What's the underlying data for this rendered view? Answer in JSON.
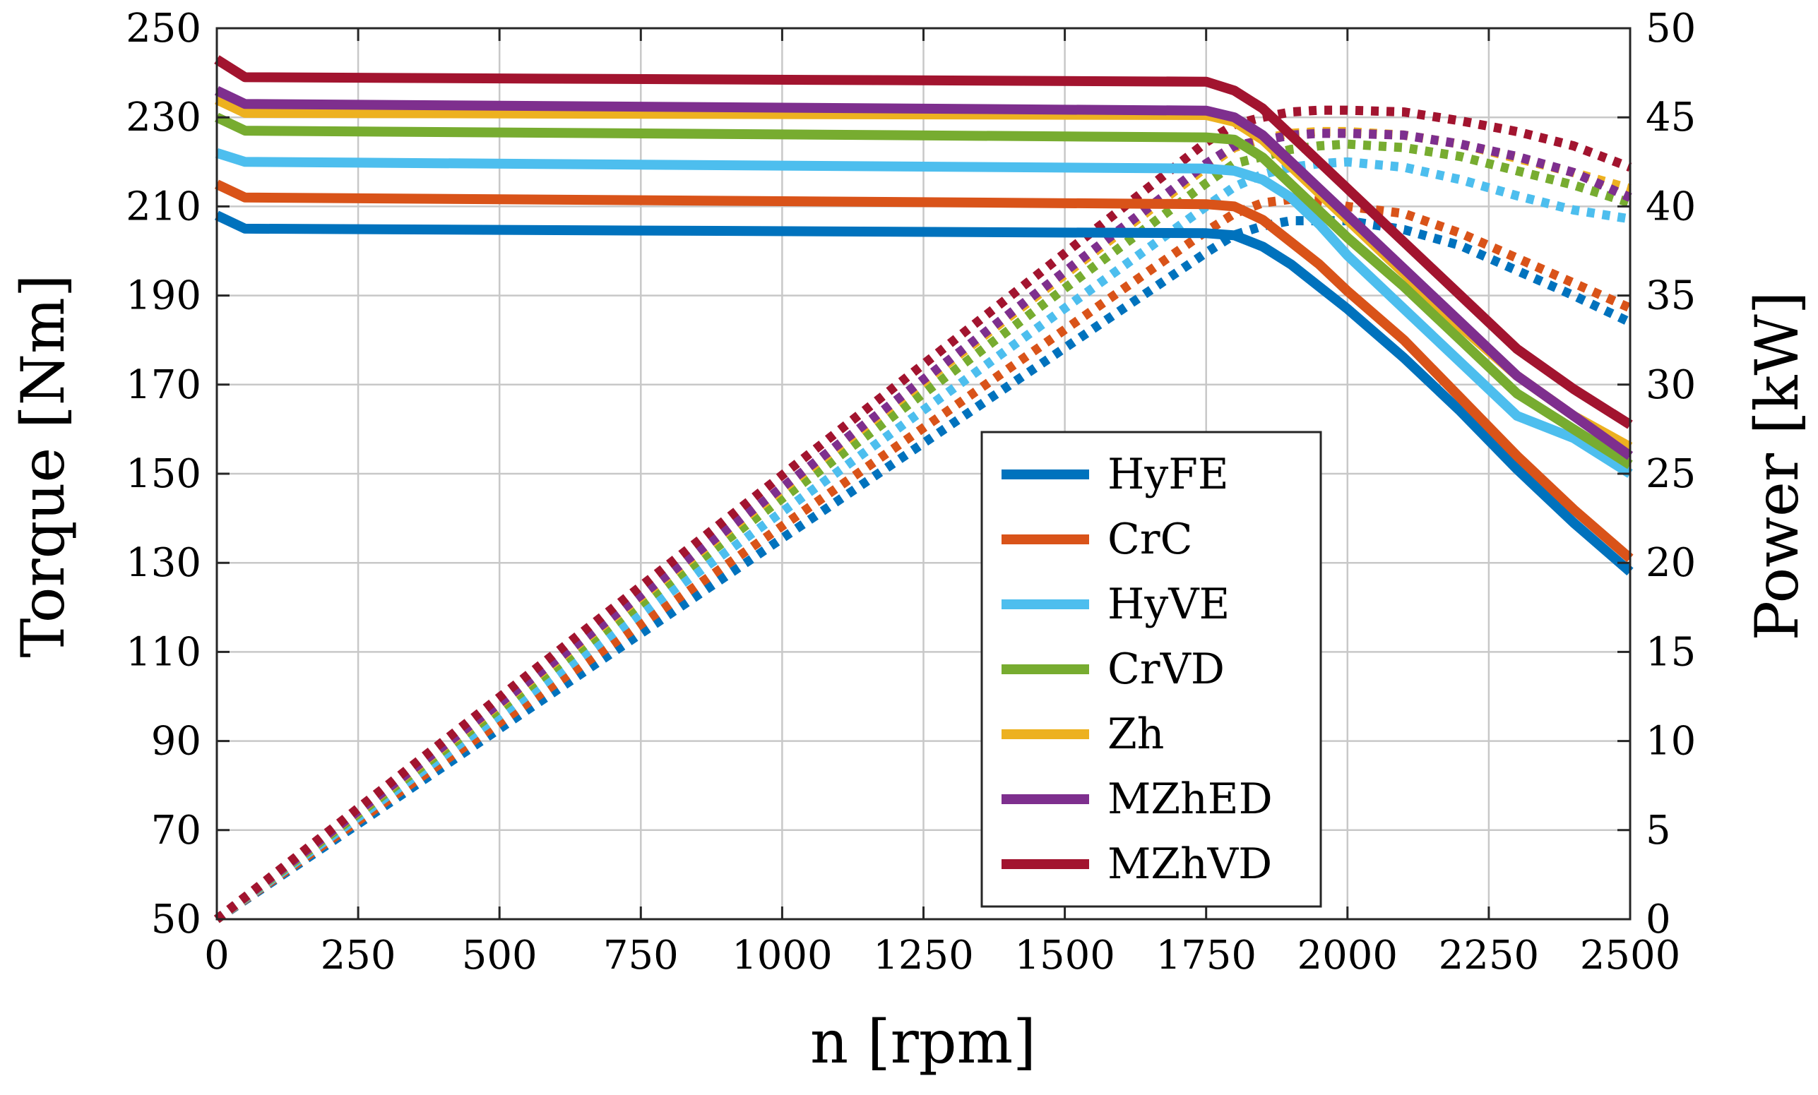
{
  "chart_data": {
    "type": "line",
    "title": "",
    "xlabel": "n [rpm]",
    "ylabel_left": "Torque [Nm]",
    "ylabel_right": "Power [kW]",
    "xlim": [
      0,
      2500
    ],
    "ylim_left": [
      50,
      250
    ],
    "ylim_right": [
      0,
      50
    ],
    "grid": true,
    "legend_position": "bottom-center",
    "xticks": [
      "0",
      "250",
      "500",
      "750",
      "1000",
      "1250",
      "1500",
      "1750",
      "2000",
      "2250",
      "2500"
    ],
    "yticks_left": [
      "50",
      "70",
      "90",
      "110",
      "130",
      "150",
      "170",
      "190",
      "210",
      "230",
      "250"
    ],
    "yticks_right": [
      "0",
      "5",
      "10",
      "15",
      "20",
      "25",
      "30",
      "35",
      "40",
      "45",
      "50"
    ],
    "x": [
      0,
      50,
      1750,
      1800,
      1850,
      1900,
      1950,
      2000,
      2100,
      2200,
      2300,
      2400,
      2500
    ],
    "torque_style": "solid",
    "power_style": "dotted",
    "series": [
      {
        "name": "HyFE",
        "color": "#0072BD",
        "torque": [
          208,
          205,
          204,
          203.5,
          201,
          197,
          192,
          187,
          176,
          164,
          151,
          139,
          128
        ],
        "power": [
          0,
          1.07,
          37.4,
          38.4,
          38.9,
          39.2,
          39.2,
          39.2,
          38.7,
          37.8,
          36.4,
          35.0,
          33.5
        ]
      },
      {
        "name": "CrC",
        "color": "#D95319",
        "torque": [
          215,
          212,
          210.5,
          210,
          207,
          202,
          197,
          191,
          180,
          167,
          154,
          142,
          131
        ],
        "power": [
          0,
          1.11,
          38.6,
          39.6,
          40.2,
          40.4,
          40.3,
          40.0,
          39.6,
          38.5,
          37.1,
          35.7,
          34.3
        ]
      },
      {
        "name": "HyVE",
        "color": "#4DBEEE",
        "torque": [
          222,
          220,
          218.5,
          218,
          216,
          212,
          206,
          199,
          187,
          175,
          163,
          158,
          150
        ],
        "power": [
          0,
          1.15,
          40.0,
          41.1,
          41.8,
          42.2,
          42.4,
          42.5,
          42.2,
          41.5,
          40.6,
          39.8,
          39.3
        ]
      },
      {
        "name": "CrVD",
        "color": "#77AC30",
        "torque": [
          230,
          227,
          225.5,
          225,
          221,
          215,
          209,
          203,
          192,
          180,
          168,
          160,
          152
        ],
        "power": [
          0,
          1.19,
          41.3,
          42.4,
          42.8,
          43.2,
          43.4,
          43.5,
          43.3,
          42.8,
          42.0,
          41.2,
          40.2
        ]
      },
      {
        "name": "Zh",
        "color": "#EDB120",
        "torque": [
          234,
          231,
          230.5,
          229,
          225,
          219,
          213,
          207,
          195,
          183,
          172,
          163,
          156
        ],
        "power": [
          0,
          1.21,
          42.2,
          43.3,
          43.8,
          44.1,
          44.2,
          44.2,
          44.0,
          43.5,
          42.7,
          41.9,
          41.0
        ]
      },
      {
        "name": "MZhED",
        "color": "#7E2F8E",
        "torque": [
          236,
          233,
          231.5,
          230,
          226,
          220,
          214,
          208,
          196,
          184,
          172,
          163,
          154
        ],
        "power": [
          0,
          1.22,
          42.4,
          43.4,
          43.7,
          44.0,
          44.1,
          44.1,
          44.0,
          43.5,
          42.8,
          41.9,
          40.5
        ]
      },
      {
        "name": "MZhVD",
        "color": "#A2142F",
        "torque": [
          243,
          239,
          238,
          236,
          232,
          226,
          220,
          214,
          202,
          190,
          178,
          169,
          161
        ],
        "power": [
          0,
          1.25,
          43.6,
          44.6,
          45.0,
          45.3,
          45.4,
          45.4,
          45.3,
          44.8,
          44.2,
          43.4,
          42.2
        ]
      }
    ]
  }
}
